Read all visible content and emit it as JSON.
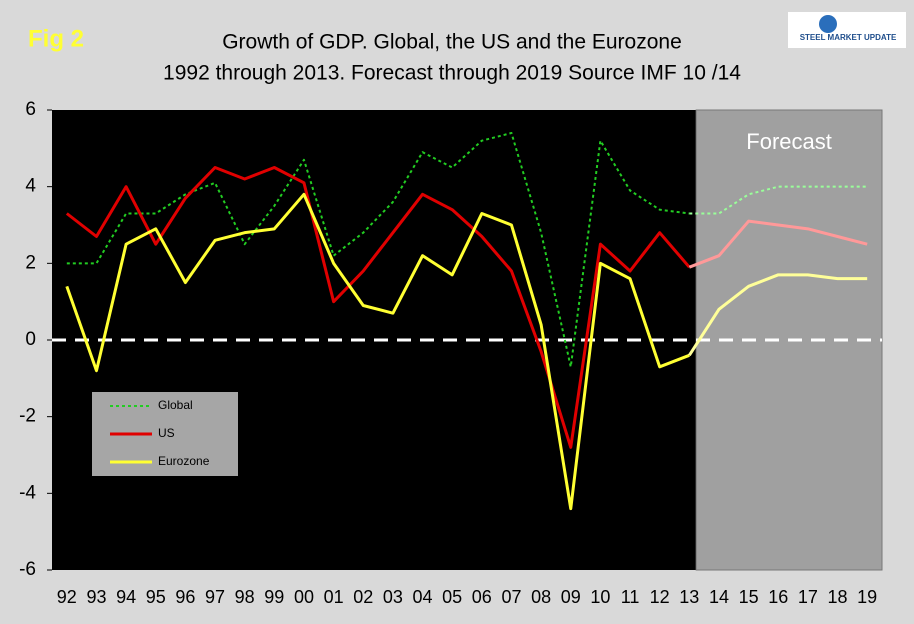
{
  "chart_data": {
    "type": "line",
    "figure_label": "Fig 2",
    "title": "Growth of GDP. Global, the US and the Eurozone",
    "subtitle": "1992 through 2013. Forecast through 2019 Source IMF 10 /14",
    "logo": "STEEL MARKET UPDATE",
    "categories": [
      "92",
      "93",
      "94",
      "95",
      "96",
      "97",
      "98",
      "99",
      "00",
      "01",
      "02",
      "03",
      "04",
      "05",
      "06",
      "07",
      "08",
      "09",
      "10",
      "11",
      "12",
      "13",
      "14",
      "15",
      "16",
      "17",
      "18",
      "19"
    ],
    "series": [
      {
        "name": "Global",
        "color": "#22cc22",
        "forecast_color": "#99ff99",
        "dashed": true,
        "values": [
          2.0,
          2.0,
          3.3,
          3.3,
          3.8,
          4.1,
          2.5,
          3.5,
          4.7,
          2.2,
          2.8,
          3.6,
          4.9,
          4.5,
          5.2,
          5.4,
          2.8,
          -0.7,
          5.2,
          3.9,
          3.4,
          3.3,
          3.3,
          3.8,
          4.0,
          4.0,
          4.0,
          4.0
        ]
      },
      {
        "name": "US",
        "color": "#e00000",
        "forecast_color": "#ff9999",
        "dashed": false,
        "values": [
          3.3,
          2.7,
          4.0,
          2.5,
          3.7,
          4.5,
          4.2,
          4.5,
          4.1,
          1.0,
          1.8,
          2.8,
          3.8,
          3.4,
          2.7,
          1.8,
          -0.3,
          -2.8,
          2.5,
          1.8,
          2.8,
          1.9,
          2.2,
          3.1,
          3.0,
          2.9,
          2.7,
          2.5
        ]
      },
      {
        "name": "Eurozone",
        "color": "#ffff33",
        "forecast_color": "#ffff99",
        "dashed": false,
        "values": [
          1.4,
          -0.8,
          2.5,
          2.9,
          1.5,
          2.6,
          2.8,
          2.9,
          3.8,
          2.0,
          0.9,
          0.7,
          2.2,
          1.7,
          3.3,
          3.0,
          0.4,
          -4.4,
          2.0,
          1.6,
          -0.7,
          -0.4,
          0.8,
          1.4,
          1.7,
          1.7,
          1.6,
          1.6
        ]
      }
    ],
    "forecast": {
      "label": "Forecast",
      "start": "14"
    },
    "ylim": [
      -6,
      6
    ],
    "yticks": [
      -6,
      -4,
      -2,
      0,
      2,
      4,
      6
    ],
    "zero_line": true
  }
}
